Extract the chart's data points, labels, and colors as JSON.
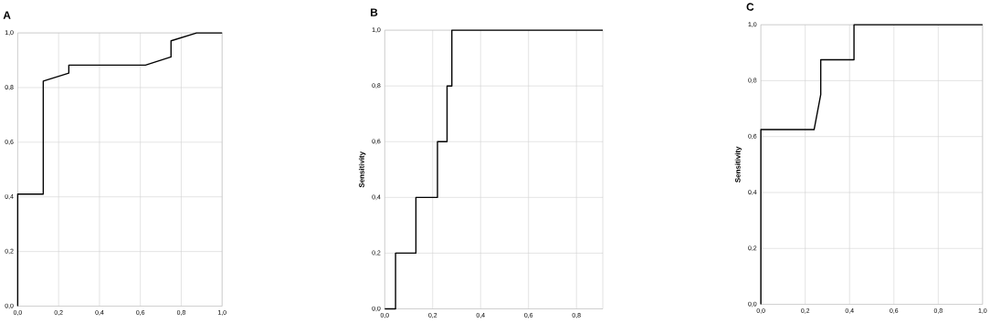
{
  "chart_data": [
    {
      "type": "line",
      "title": "A",
      "x": [
        0,
        0,
        0.125,
        0.125,
        0.25,
        0.25,
        0.625,
        0.75,
        0.75,
        0.875,
        1
      ],
      "values": [
        0,
        0.41,
        0.41,
        0.824,
        0.853,
        0.882,
        0.882,
        0.912,
        0.971,
        1,
        1
      ],
      "color": "#000000",
      "xlim": [
        0,
        1
      ],
      "ylim": [
        0,
        1
      ],
      "xticks": [
        {
          "value": 0,
          "label": "0,0"
        },
        {
          "value": 0.2,
          "label": "0,2"
        },
        {
          "value": 0.4,
          "label": "0,4"
        },
        {
          "value": 0.6,
          "label": "0,6"
        },
        {
          "value": 0.8,
          "label": "0,8"
        },
        {
          "value": 1,
          "label": "1,0"
        }
      ],
      "yticks": [
        {
          "value": 0,
          "label": "0,0"
        },
        {
          "value": 0.2,
          "label": "0,2"
        },
        {
          "value": 0.4,
          "label": "0,4"
        },
        {
          "value": 0.6,
          "label": "0,6"
        },
        {
          "value": 0.8,
          "label": "0,8"
        },
        {
          "value": 1,
          "label": "1,0"
        }
      ],
      "grid": true
    },
    {
      "type": "line",
      "title": "B",
      "ylabel": "Sensitivity",
      "x": [
        0,
        0.045,
        0.045,
        0.13,
        0.13,
        0.22,
        0.22,
        0.26,
        0.26,
        0.28,
        0.28,
        0.91
      ],
      "values": [
        0,
        0,
        0.2,
        0.2,
        0.4,
        0.4,
        0.6,
        0.6,
        0.8,
        0.8,
        1,
        1
      ],
      "color": "#000000",
      "xlim": [
        0,
        0.91
      ],
      "ylim": [
        0,
        1
      ],
      "xticks": [
        {
          "value": 0,
          "label": "0,0"
        },
        {
          "value": 0.2,
          "label": "0,2"
        },
        {
          "value": 0.4,
          "label": "0,4"
        },
        {
          "value": 0.6,
          "label": "0,6"
        },
        {
          "value": 0.8,
          "label": "0,8"
        }
      ],
      "yticks": [
        {
          "value": 0,
          "label": "0,0"
        },
        {
          "value": 0.2,
          "label": "0,2"
        },
        {
          "value": 0.4,
          "label": "0,4"
        },
        {
          "value": 0.6,
          "label": "0,6"
        },
        {
          "value": 0.8,
          "label": "0,8"
        },
        {
          "value": 1,
          "label": "1,0"
        }
      ],
      "grid": true
    },
    {
      "type": "line",
      "title": "C",
      "ylabel": "Sensitivity",
      "x": [
        0,
        0,
        0.24,
        0.27,
        0.27,
        0.42,
        0.42,
        1
      ],
      "values": [
        0,
        0.625,
        0.625,
        0.75,
        0.875,
        0.875,
        1,
        1
      ],
      "color": "#000000",
      "xlim": [
        0,
        1
      ],
      "ylim": [
        0,
        1
      ],
      "xticks": [
        {
          "value": 0,
          "label": "0,0"
        },
        {
          "value": 0.2,
          "label": "0,2"
        },
        {
          "value": 0.4,
          "label": "0,4"
        },
        {
          "value": 0.6,
          "label": "0,6"
        },
        {
          "value": 0.8,
          "label": "0,8"
        },
        {
          "value": 1,
          "label": "1,0"
        }
      ],
      "yticks": [
        {
          "value": 0,
          "label": "0,0"
        },
        {
          "value": 0.2,
          "label": "0,2"
        },
        {
          "value": 0.4,
          "label": "0,4"
        },
        {
          "value": 0.6,
          "label": "0,6"
        },
        {
          "value": 0.8,
          "label": "0,8"
        },
        {
          "value": 1,
          "label": "1,0"
        }
      ],
      "grid": true
    }
  ]
}
